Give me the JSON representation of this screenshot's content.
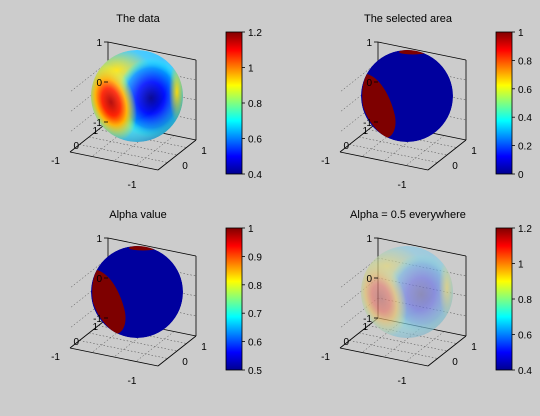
{
  "figure": {
    "background": "#cccccc"
  },
  "chart_data": [
    {
      "type": "heatmap",
      "title": "The data",
      "surface": "sphere",
      "pattern": "smooth",
      "color_range": [
        0.4,
        1.2
      ],
      "colorbar_ticks": [
        "1.2",
        "1",
        "0.8",
        "0.6",
        "0.4"
      ],
      "colormap": "jet",
      "alpha": 1.0,
      "axes": {
        "x_ticks": [
          "-1",
          "0",
          "1"
        ],
        "y_ticks": [
          "-1",
          "0",
          "1"
        ],
        "z_ticks": [
          "-1",
          "0",
          "1"
        ]
      },
      "grid": true
    },
    {
      "type": "heatmap",
      "title": "The selected area",
      "surface": "sphere",
      "pattern": "region",
      "color_range": [
        0,
        1
      ],
      "colorbar_ticks": [
        "1",
        "0.8",
        "0.6",
        "0.4",
        "0.2",
        "0"
      ],
      "colormap": "jet",
      "alpha": 1.0,
      "axes": {
        "x_ticks": [
          "-1",
          "0",
          "1"
        ],
        "y_ticks": [
          "-1",
          "0",
          "1"
        ],
        "z_ticks": [
          "-1",
          "0",
          "1"
        ]
      },
      "grid": true
    },
    {
      "type": "heatmap",
      "title": "Alpha value",
      "surface": "sphere",
      "pattern": "region",
      "color_range": [
        0.5,
        1
      ],
      "colorbar_ticks": [
        "1",
        "0.9",
        "0.8",
        "0.7",
        "0.6",
        "0.5"
      ],
      "colormap": "jet",
      "alpha": 1.0,
      "axes": {
        "x_ticks": [
          "-1",
          "0",
          "1"
        ],
        "y_ticks": [
          "-1",
          "0",
          "1"
        ],
        "z_ticks": [
          "-1",
          "0",
          "1"
        ]
      },
      "grid": true
    },
    {
      "type": "heatmap",
      "title": "Alpha = 0.5 everywhere",
      "surface": "sphere",
      "pattern": "smooth",
      "color_range": [
        0.4,
        1.2
      ],
      "colorbar_ticks": [
        "1.2",
        "1",
        "0.8",
        "0.6",
        "0.4"
      ],
      "colormap": "jet",
      "alpha": 0.5,
      "axes": {
        "x_ticks": [
          "-1",
          "0",
          "1"
        ],
        "y_ticks": [
          "-1",
          "0",
          "1"
        ],
        "z_ticks": [
          "-1",
          "0",
          "1"
        ]
      },
      "grid": true
    }
  ]
}
